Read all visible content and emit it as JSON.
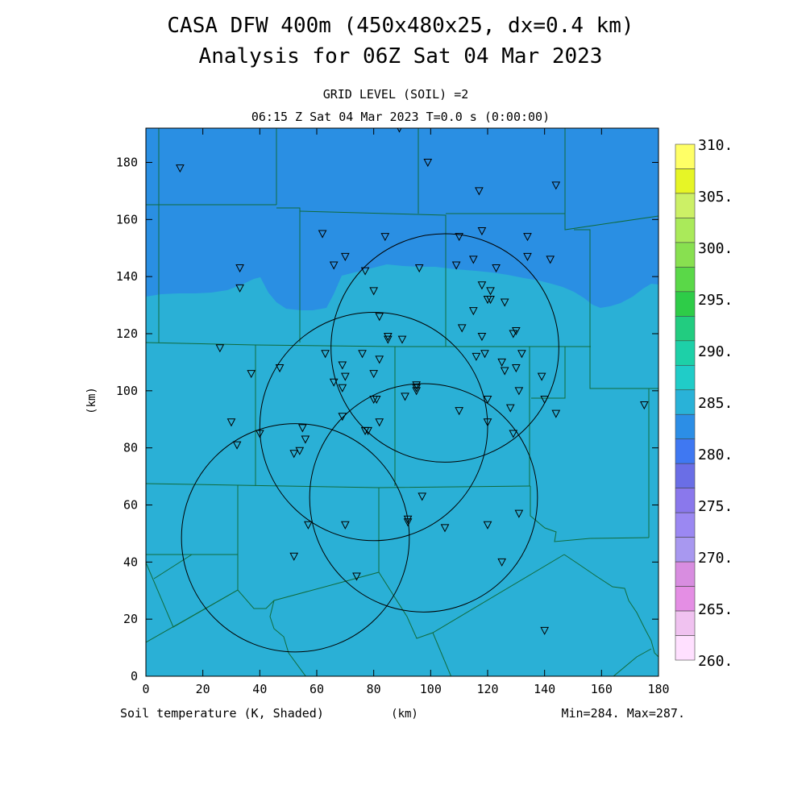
{
  "header": {
    "title_line1": "CASA DFW 400m (450x480x25, dx=0.4 km)",
    "title_line2": "Analysis for 06Z Sat 04 Mar 2023",
    "level_label": "GRID LEVEL (SOIL) =2",
    "time_label": "06:15 Z Sat 04 Mar 2023   T=0.0 s (0:00:00)"
  },
  "footer": {
    "field_label": "Soil temperature (K, Shaded)",
    "xunit_label": "(km)",
    "minmax_label": "Min=284. Max=287."
  },
  "chart_data": {
    "type": "heatmap",
    "title": "CASA DFW 400m (450x480x25, dx=0.4 km)",
    "subtitle": "Analysis for 06Z Sat 04 Mar 2023",
    "xlabel": "(km)",
    "ylabel": "(km)",
    "xlim": [
      0,
      180
    ],
    "ylim": [
      0,
      192
    ],
    "xticks": [
      0,
      20,
      40,
      60,
      80,
      100,
      120,
      140,
      160,
      180
    ],
    "yticks": [
      0,
      20,
      40,
      60,
      80,
      100,
      120,
      140,
      160,
      180
    ],
    "field": "Soil temperature (K, Shaded)",
    "min": 284,
    "max": 287,
    "colorbar": {
      "labels": [
        "310.",
        "305.",
        "300.",
        "295.",
        "290.",
        "285.",
        "280.",
        "275.",
        "270.",
        "265.",
        "260."
      ],
      "colors": [
        "#ffff66",
        "#e6f526",
        "#ccf066",
        "#aaea5a",
        "#88e050",
        "#5ad848",
        "#2ecc48",
        "#22cc80",
        "#1dd0a8",
        "#20ccc8",
        "#29b2d8",
        "#2c8ee6",
        "#3f78f2",
        "#6a6ee6",
        "#8a78ec",
        "#9b88f2",
        "#a898f0",
        "#d88de0",
        "#e48ee4",
        "#f0c2f0",
        "#ffe0ff"
      ]
    },
    "shading": {
      "cold_region_K": 285.5,
      "warm_region_K": 286.5,
      "cold_color": "#2a8fe3",
      "warm_color": "#2ab0d6"
    },
    "radar_rings": [
      {
        "cx": 52.5,
        "cy": 48.5,
        "r": 40
      },
      {
        "cx": 80,
        "cy": 87.5,
        "r": 40
      },
      {
        "cx": 97.5,
        "cy": 62.5,
        "r": 40
      },
      {
        "cx": 105,
        "cy": 115,
        "r": 40
      }
    ],
    "stations": [
      [
        12,
        178
      ],
      [
        89,
        192
      ],
      [
        99,
        180
      ],
      [
        117,
        170
      ],
      [
        144,
        172
      ],
      [
        62,
        155
      ],
      [
        84,
        154
      ],
      [
        110,
        154
      ],
      [
        118,
        156
      ],
      [
        134,
        154
      ],
      [
        33,
        143
      ],
      [
        33,
        136
      ],
      [
        66,
        144
      ],
      [
        70,
        147
      ],
      [
        77,
        142
      ],
      [
        80,
        135
      ],
      [
        96,
        143
      ],
      [
        109,
        144
      ],
      [
        115,
        146
      ],
      [
        123,
        143
      ],
      [
        134,
        147
      ],
      [
        142,
        146
      ],
      [
        118,
        137
      ],
      [
        121,
        135
      ],
      [
        120,
        132
      ],
      [
        121,
        132
      ],
      [
        126,
        131
      ],
      [
        115,
        128
      ],
      [
        82,
        126
      ],
      [
        111,
        122
      ],
      [
        118,
        119
      ],
      [
        129,
        120
      ],
      [
        130,
        121
      ],
      [
        85,
        119
      ],
      [
        85,
        118
      ],
      [
        90,
        118
      ],
      [
        26,
        115
      ],
      [
        63,
        113
      ],
      [
        69,
        109
      ],
      [
        76,
        113
      ],
      [
        82,
        111
      ],
      [
        116,
        112
      ],
      [
        119,
        113
      ],
      [
        125,
        110
      ],
      [
        126,
        107
      ],
      [
        130,
        108
      ],
      [
        132,
        113
      ],
      [
        37,
        106
      ],
      [
        47,
        108
      ],
      [
        66,
        103
      ],
      [
        70,
        105
      ],
      [
        69,
        101
      ],
      [
        80,
        106
      ],
      [
        95,
        102
      ],
      [
        95,
        100
      ],
      [
        95,
        101
      ],
      [
        91,
        98
      ],
      [
        80,
        97
      ],
      [
        81,
        97
      ],
      [
        120,
        97
      ],
      [
        131,
        100
      ],
      [
        139,
        105
      ],
      [
        140,
        97
      ],
      [
        144,
        92
      ],
      [
        175,
        95
      ],
      [
        110,
        93
      ],
      [
        128,
        94
      ],
      [
        120,
        89
      ],
      [
        129,
        85
      ],
      [
        30,
        89
      ],
      [
        32,
        81
      ],
      [
        40,
        85
      ],
      [
        55,
        87
      ],
      [
        56,
        83
      ],
      [
        52,
        78
      ],
      [
        54,
        79
      ],
      [
        69,
        91
      ],
      [
        77,
        86
      ],
      [
        78,
        86
      ],
      [
        82,
        89
      ],
      [
        97,
        63
      ],
      [
        92,
        55
      ],
      [
        92,
        54
      ],
      [
        57,
        53
      ],
      [
        70,
        53
      ],
      [
        105,
        52
      ],
      [
        120,
        53
      ],
      [
        131,
        57
      ],
      [
        52,
        42
      ],
      [
        74,
        35
      ],
      [
        125,
        40
      ],
      [
        140,
        16
      ]
    ]
  }
}
